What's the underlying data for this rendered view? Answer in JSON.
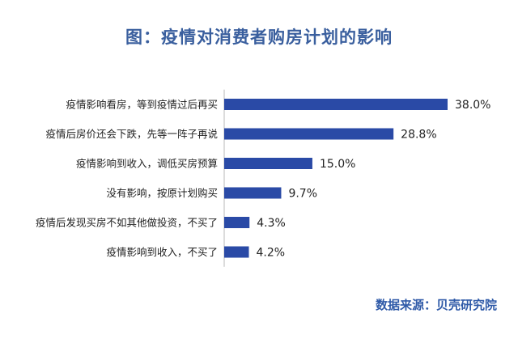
{
  "title": "图：疫情对消费者购房计划的影响",
  "source": "数据来源：贝壳研究院",
  "colors": {
    "bar": "#2a4aa6",
    "title": "#3a5f9e",
    "source": "#2f5aa8",
    "axis": "#b8b8b8",
    "label": "#222222"
  },
  "chart_data": {
    "type": "bar",
    "orientation": "horizontal",
    "categories": [
      "疫情影响看房，等到疫情过后再买",
      "疫情后房价还会下跌，先等一阵子再说",
      "疫情影响到收入，调低买房预算",
      "没有影响，按原计划购买",
      "疫情后发现买房不如其他做投资，不买了",
      "疫情影响到收入，不买了"
    ],
    "values": [
      38.0,
      28.8,
      15.0,
      9.7,
      4.3,
      4.2
    ],
    "value_labels": [
      "38.0%",
      "28.8%",
      "15.0%",
      "9.7%",
      "4.3%",
      "4.2%"
    ],
    "xlim": [
      0,
      38.0
    ],
    "grid": false,
    "legend": false
  }
}
